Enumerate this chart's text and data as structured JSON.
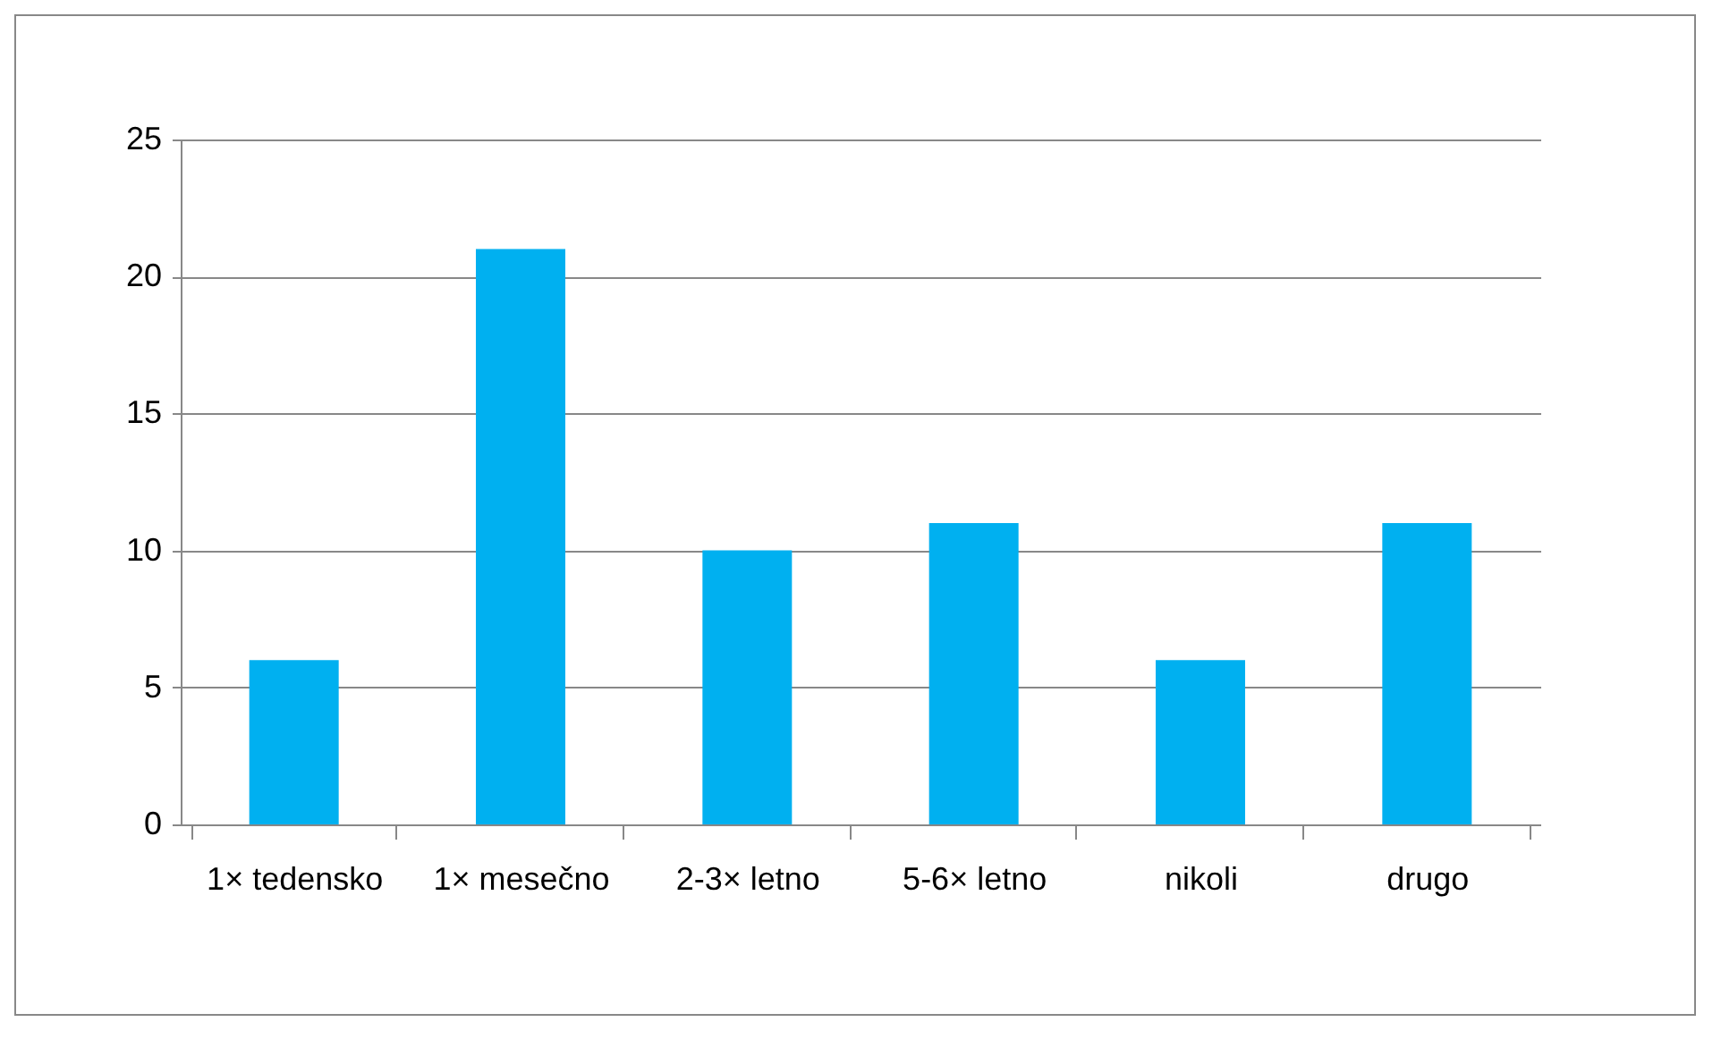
{
  "chart_data": {
    "type": "bar",
    "categories": [
      "1× tedensko",
      "1× mesečno",
      "2-3× letno",
      "5-6× letno",
      "nikoli",
      "drugo"
    ],
    "values": [
      6,
      21,
      10,
      11,
      6,
      11
    ],
    "color": "#00b0f0",
    "ylim": [
      0,
      25
    ],
    "yticks": [
      0,
      5,
      10,
      15,
      20,
      25
    ],
    "grid": "y"
  }
}
